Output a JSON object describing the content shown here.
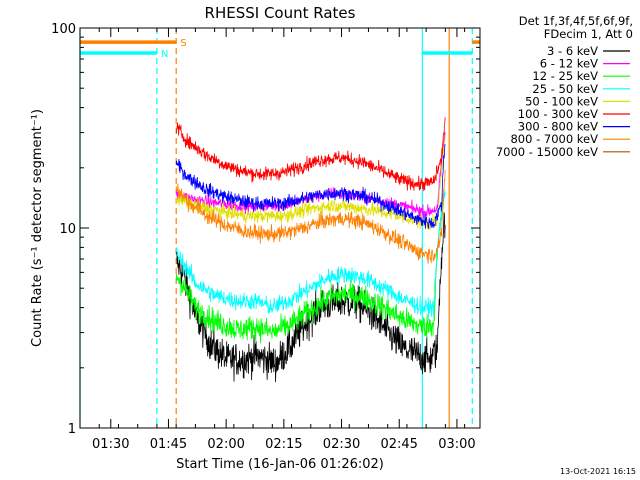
{
  "chart_data": {
    "type": "line",
    "title": "RHESSI Count Rates",
    "xlabel": "Start Time (16-Jan-06 01:26:02)",
    "ylabel": "Count Rate (s⁻¹ detector segment⁻¹)",
    "yscale": "log",
    "xlim": [
      "01:22",
      "03:06"
    ],
    "ylim": [
      1,
      100
    ],
    "x_ticks": [
      "01:30",
      "01:45",
      "02:00",
      "02:15",
      "02:30",
      "02:45",
      "03:00"
    ],
    "y_ticks": [
      "1",
      "10",
      "100"
    ],
    "grid": false,
    "legend_placement": "right",
    "legend_header": [
      "Det 1f,3f,4f,5f,6f,9f,",
      "FDecim 1, Att 0"
    ],
    "data_gaps": [
      [
        "01:22",
        "01:47"
      ],
      [
        "02:52",
        "03:04"
      ]
    ],
    "series": [
      {
        "name": "3 - 6 keV",
        "color": "#000000",
        "noise": 0.1,
        "x": [
          "01:47",
          "01:52",
          "01:56",
          "02:00",
          "02:05",
          "02:08",
          "02:13",
          "02:17",
          "02:21",
          "02:25",
          "02:30",
          "02:34",
          "02:38",
          "02:42",
          "02:46",
          "02:50",
          "02:53",
          "02:55",
          "02:57"
        ],
        "y": [
          7.0,
          3.6,
          2.6,
          2.2,
          2.2,
          2.3,
          2.1,
          2.6,
          3.4,
          4.1,
          4.3,
          4.2,
          3.7,
          3.0,
          2.5,
          2.3,
          2.2,
          2.5,
          12
        ]
      },
      {
        "name": "6 - 12 keV",
        "color": "#ff00ff",
        "noise": 0.035,
        "x": [
          "01:47",
          "01:55",
          "02:05",
          "02:15",
          "02:22",
          "02:28",
          "02:32",
          "02:38",
          "02:45",
          "02:52",
          "02:55",
          "02:57"
        ],
        "y": [
          14.5,
          13.5,
          12.8,
          13.0,
          14.2,
          15.0,
          14.6,
          14.0,
          13.0,
          12.0,
          12.5,
          30
        ]
      },
      {
        "name": "12 - 25 keV",
        "color": "#00ff00",
        "noise": 0.07,
        "x": [
          "01:47",
          "01:52",
          "01:57",
          "02:03",
          "02:08",
          "02:12",
          "02:17",
          "02:22",
          "02:27",
          "02:31",
          "02:36",
          "02:41",
          "02:46",
          "02:51",
          "02:54",
          "02:57"
        ],
        "y": [
          5.8,
          4.0,
          3.4,
          3.1,
          3.2,
          3.0,
          3.3,
          3.9,
          4.5,
          4.7,
          4.5,
          4.0,
          3.5,
          3.2,
          3.3,
          16
        ]
      },
      {
        "name": "25 - 50 keV",
        "color": "#00ffff",
        "noise": 0.05,
        "x": [
          "01:47",
          "01:52",
          "01:57",
          "02:03",
          "02:08",
          "02:12",
          "02:17",
          "02:22",
          "02:27",
          "02:31",
          "02:36",
          "02:41",
          "02:46",
          "02:51",
          "02:54",
          "02:57"
        ],
        "y": [
          7.5,
          5.3,
          4.6,
          4.3,
          4.3,
          4.0,
          4.4,
          5.0,
          5.7,
          5.9,
          5.6,
          5.0,
          4.4,
          4.0,
          4.0,
          16
        ]
      },
      {
        "name": "50 - 100 keV",
        "color": "#e0e000",
        "noise": 0.04,
        "x": [
          "01:47",
          "01:55",
          "02:05",
          "02:15",
          "02:22",
          "02:28",
          "02:32",
          "02:38",
          "02:45",
          "02:52",
          "02:55",
          "02:57"
        ],
        "y": [
          14.0,
          12.5,
          11.5,
          11.5,
          12.5,
          13.0,
          12.8,
          12.3,
          11.5,
          10.5,
          10.8,
          28
        ]
      },
      {
        "name": "100 - 300 keV",
        "color": "#ff0000",
        "noise": 0.04,
        "x": [
          "01:47",
          "01:50",
          "01:55",
          "02:00",
          "02:05",
          "02:10",
          "02:15",
          "02:20",
          "02:25",
          "02:30",
          "02:35",
          "02:40",
          "02:45",
          "02:50",
          "02:54",
          "02:56",
          "02:57"
        ],
        "y": [
          32,
          27,
          23,
          20.5,
          19,
          18.5,
          19,
          20.5,
          22,
          22.5,
          21.5,
          19.5,
          17.5,
          16.5,
          17,
          22,
          36
        ]
      },
      {
        "name": "300 - 800 keV",
        "color": "#0000ff",
        "noise": 0.04,
        "x": [
          "01:47",
          "01:50",
          "01:55",
          "02:00",
          "02:05",
          "02:10",
          "02:15",
          "02:20",
          "02:25",
          "02:30",
          "02:35",
          "02:40",
          "02:45",
          "02:50",
          "02:54",
          "02:56",
          "02:57"
        ],
        "y": [
          21,
          18,
          15.5,
          14.3,
          13.5,
          13.2,
          13.3,
          14,
          14.8,
          15,
          14.5,
          13.5,
          12.2,
          11,
          10.5,
          13,
          28
        ]
      },
      {
        "name": "800 - 7000 keV",
        "color": "#ff8000",
        "noise": 0.045,
        "x": [
          "01:47",
          "01:50",
          "01:55",
          "02:00",
          "02:05",
          "02:10",
          "02:15",
          "02:20",
          "02:25",
          "02:30",
          "02:35",
          "02:40",
          "02:45",
          "02:50",
          "02:54",
          "02:56",
          "02:57"
        ],
        "y": [
          16,
          13.5,
          11.5,
          10.3,
          9.6,
          9.3,
          9.4,
          10,
          10.8,
          11.2,
          10.8,
          9.8,
          8.6,
          7.6,
          7.3,
          9,
          20
        ]
      },
      {
        "name": "7000 - 15000 keV",
        "color": "#a05a00",
        "noise": 0,
        "x": [],
        "y": []
      }
    ],
    "attenuator_bar": {
      "label": "S",
      "color": "#ff8000",
      "level": 85,
      "segments": [
        [
          "01:22",
          "01:47"
        ],
        [
          "03:04",
          "03:06"
        ]
      ]
    },
    "night_bar": {
      "label": "N",
      "color": "#00ffff",
      "level": 75,
      "segments": [
        [
          "01:22",
          "01:42"
        ],
        [
          "02:51",
          "03:04"
        ]
      ]
    },
    "vlines": [
      {
        "x": "01:22",
        "color": "#00ffff",
        "style": "solid"
      },
      {
        "x": "01:42",
        "color": "#00ffff",
        "style": "dashed"
      },
      {
        "x": "01:47",
        "color": "#ff8000",
        "style": "dashed"
      },
      {
        "x": "02:51",
        "color": "#00ffff",
        "style": "solid"
      },
      {
        "x": "02:58",
        "color": "#ff8000",
        "style": "solid"
      },
      {
        "x": "03:04",
        "color": "#00ffff",
        "style": "dashed"
      }
    ]
  },
  "footer": {
    "timestamp": "13-Oct-2021 16:15"
  }
}
